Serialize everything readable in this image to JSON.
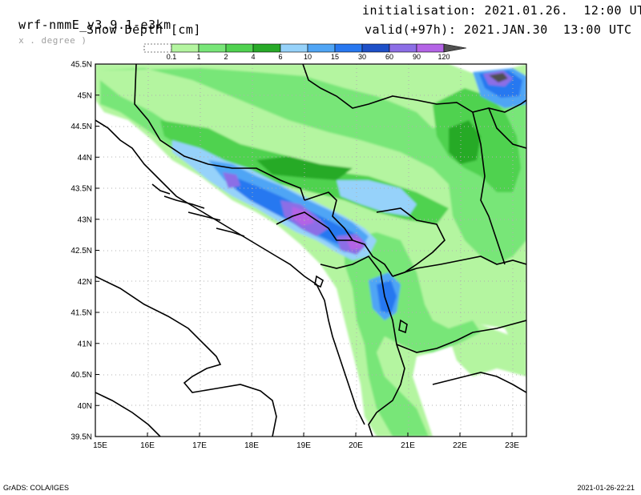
{
  "header": {
    "model": "wrf-nmmE_v3.9.1-e3km",
    "projection_note": "x . degree )",
    "variable": "Snow Depth [cm]",
    "init_label": "initialisation: 2021.01.26.  12:00 UTC",
    "valid_label": "valid(+97h): 2021.JAN.30  13:00 UTC"
  },
  "colorbar": {
    "labels": [
      "0.1",
      "1",
      "2",
      "4",
      "6",
      "10",
      "15",
      "30",
      "60",
      "90",
      "120"
    ],
    "colors": [
      "#ffffff",
      "#b4f5a0",
      "#78e678",
      "#50d250",
      "#28aa28",
      "#96d2fa",
      "#50a5f5",
      "#2878f0",
      "#1e50c8",
      "#8c6ee6",
      "#b464e6",
      "#505050"
    ]
  },
  "axes": {
    "lat_labels": [
      "45.5N",
      "45N",
      "44.5N",
      "44N",
      "43.5N",
      "43N",
      "42.5N",
      "42N",
      "41.5N",
      "41N",
      "40.5N",
      "40N",
      "39.5N"
    ],
    "lon_labels": [
      "15E",
      "16E",
      "17E",
      "18E",
      "19E",
      "20E",
      "21E",
      "22E",
      "23E"
    ]
  },
  "footer": {
    "left": "GrADS: COLA/IGES",
    "right": "2021-01-26-22:21"
  },
  "map_colors": {
    "land_light": "#b4f5a0",
    "green_mid": "#78e678",
    "green": "#50d250",
    "green_dark": "#28aa28",
    "blue_light": "#96d2fa",
    "blue": "#50a5f5",
    "blue_dark": "#2878f0",
    "navy": "#1e50c8",
    "purple": "#8c6ee6",
    "magenta": "#b464e6",
    "grey": "#505050"
  }
}
